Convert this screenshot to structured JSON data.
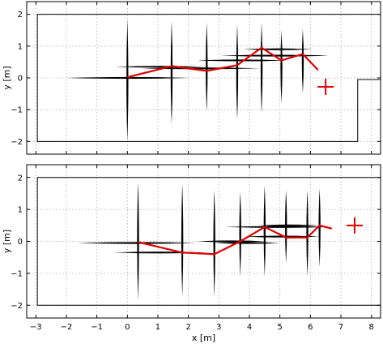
{
  "chart_data": [
    {
      "type": "line",
      "xlabel": "",
      "ylabel": "y [m]",
      "xlim": [
        -3.3,
        8.3
      ],
      "ylim": [
        -2.4,
        2.4
      ],
      "xticks": [
        -3,
        -2,
        -1,
        0,
        1,
        2,
        3,
        4,
        5,
        6,
        7,
        8
      ],
      "yticks": [
        -2,
        -1,
        0,
        1,
        2
      ],
      "show_xticklabels": false,
      "grid": true,
      "boundary": [
        [
          8.3,
          2
        ],
        [
          -2.95,
          2
        ],
        [
          -2.95,
          -2
        ],
        [
          7.55,
          -2
        ],
        [
          7.55,
          -0.05
        ],
        [
          8.3,
          -0.05
        ]
      ],
      "vertical_segments": [
        [
          0,
          1.85,
          -2.0
        ],
        [
          1.45,
          1.8,
          -1.45
        ],
        [
          2.6,
          1.75,
          -1.05
        ],
        [
          3.6,
          1.7,
          -1.3
        ],
        [
          4.4,
          1.75,
          -1.1
        ],
        [
          5.05,
          1.5,
          -0.8
        ],
        [
          5.75,
          1.55,
          -0.5
        ]
      ],
      "horizontal_segments": [
        [
          -2.0,
          2.05,
          0.0
        ],
        [
          -0.4,
          2.5,
          0.35
        ],
        [
          0.45,
          4.35,
          0.3
        ],
        [
          2.3,
          5.2,
          0.55
        ],
        [
          3.05,
          6.6,
          0.7
        ],
        [
          3.8,
          6.05,
          0.9
        ]
      ],
      "trajectory": {
        "x": [
          0,
          1.45,
          2.6,
          3.6,
          4.4,
          5.05,
          5.75,
          6.25
        ],
        "y": [
          0.02,
          0.37,
          0.22,
          0.4,
          0.95,
          0.55,
          0.75,
          0.25
        ]
      },
      "target": {
        "x": 6.5,
        "y": -0.28
      },
      "colors": {
        "trajectory": "#e00000",
        "obstacles": "#000000",
        "target": "#e00000"
      }
    },
    {
      "type": "line",
      "xlabel": "x [m]",
      "ylabel": "y [m]",
      "xlim": [
        -3.3,
        8.3
      ],
      "ylim": [
        -2.4,
        2.4
      ],
      "xticks": [
        -3,
        -2,
        -1,
        0,
        1,
        2,
        3,
        4,
        5,
        6,
        7,
        8
      ],
      "yticks": [
        -2,
        -1,
        0,
        1,
        2
      ],
      "show_xticklabels": true,
      "grid": true,
      "boundary": [
        [
          8.3,
          2
        ],
        [
          -2.95,
          2
        ],
        [
          -2.95,
          -2
        ],
        [
          8.3,
          -2
        ]
      ],
      "vertical_segments": [
        [
          0.35,
          1.85,
          -1.85
        ],
        [
          1.8,
          1.8,
          -1.75
        ],
        [
          2.85,
          1.6,
          -1.75
        ],
        [
          3.7,
          1.55,
          -1.1
        ],
        [
          4.5,
          1.75,
          -1.1
        ],
        [
          5.2,
          1.6,
          -0.7
        ],
        [
          5.9,
          1.6,
          -1.1
        ],
        [
          6.3,
          1.65,
          -0.8
        ]
      ],
      "horizontal_segments": [
        [
          -1.65,
          2.25,
          -0.05
        ],
        [
          -0.45,
          2.55,
          -0.35
        ],
        [
          2.3,
          4.55,
          0.0
        ],
        [
          2.85,
          5.0,
          -0.05
        ],
        [
          3.2,
          6.7,
          0.45
        ],
        [
          3.85,
          6.3,
          0.15
        ],
        [
          4.3,
          6.25,
          0.5
        ]
      ],
      "trajectory": {
        "x": [
          0.35,
          1.8,
          2.85,
          3.7,
          4.5,
          5.2,
          5.9,
          6.3,
          6.7
        ],
        "y": [
          -0.02,
          -0.35,
          -0.4,
          0.0,
          0.45,
          0.12,
          0.12,
          0.5,
          0.4
        ]
      },
      "target": {
        "x": 7.45,
        "y": 0.5
      },
      "colors": {
        "trajectory": "#e00000",
        "obstacles": "#000000",
        "target": "#e00000"
      }
    }
  ]
}
